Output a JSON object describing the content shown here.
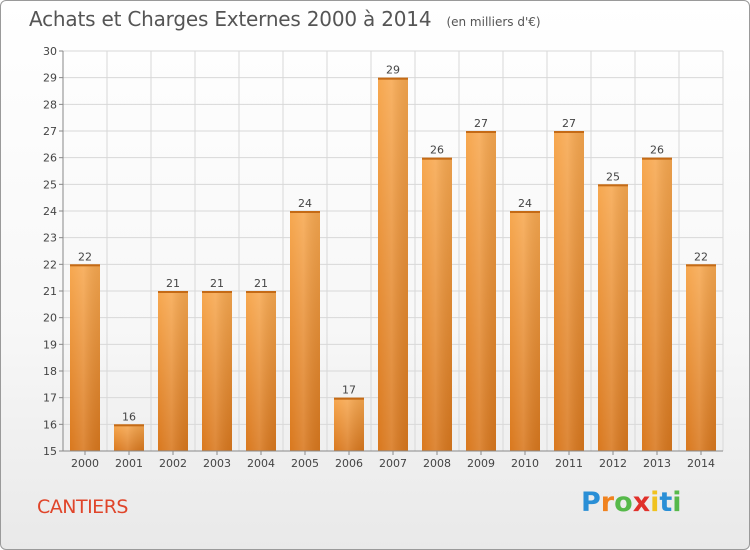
{
  "title": "Achats et Charges Externes 2000 à 2014",
  "unit": "(en milliers d'€)",
  "commune": "CANTIERS",
  "brand": {
    "letters": [
      "P",
      "r",
      "o",
      "x",
      "i",
      "t",
      "i"
    ],
    "colors": [
      "#2a8fd6",
      "#f0821e",
      "#56b94a",
      "#e0302a",
      "#f0c21e",
      "#2a8fd6",
      "#56b94a"
    ]
  },
  "colors": {
    "bar_top": "#f7a850",
    "bar_bottom": "#d9781e",
    "grid": "#d8d8d8",
    "axis_text": "#444444",
    "label_text": "#444444"
  },
  "chart_data": {
    "type": "bar",
    "categories": [
      "2000",
      "2001",
      "2002",
      "2003",
      "2004",
      "2005",
      "2006",
      "2007",
      "2008",
      "2009",
      "2010",
      "2011",
      "2012",
      "2013",
      "2014"
    ],
    "values": [
      22,
      16,
      21,
      21,
      21,
      24,
      17,
      29,
      26,
      27,
      24,
      27,
      25,
      26,
      22
    ],
    "ylim": [
      15,
      30
    ],
    "yticks": [
      15,
      16,
      17,
      18,
      19,
      20,
      21,
      22,
      23,
      24,
      25,
      26,
      27,
      28,
      29,
      30
    ],
    "grid": true,
    "data_labels": true
  }
}
